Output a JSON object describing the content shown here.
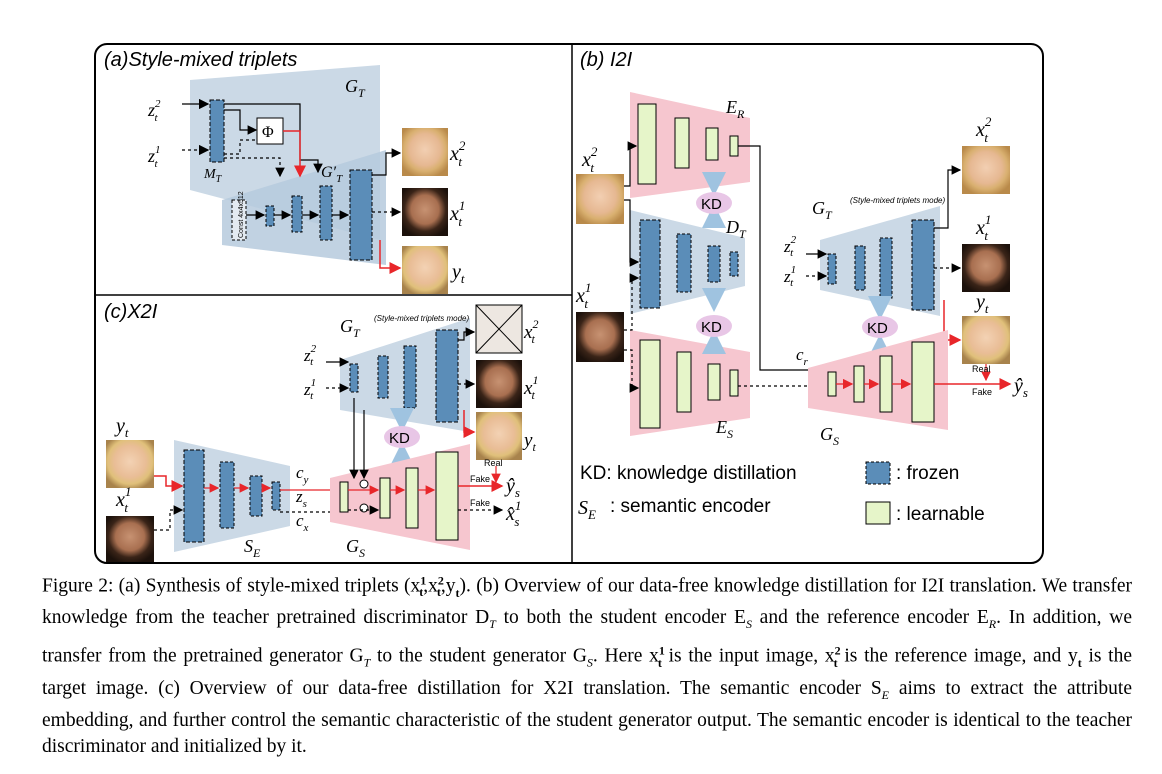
{
  "panels": {
    "a_title": "(a)Style-mixed triplets",
    "b_title": "(b) I2I",
    "c_title": "(c)X2I"
  },
  "labels": {
    "G_T": "G",
    "G_T_sub": "T",
    "G_T_prime": "G′",
    "M_T": "M",
    "M_T_sub": "T",
    "phi": "Φ",
    "const": "Const 4x4x512",
    "z_t": "z",
    "x_t": "x",
    "y_t": "y",
    "E_R": "E",
    "E_R_sub": "R",
    "E_S": "E",
    "E_S_sub": "S",
    "D_T": "D",
    "D_T_sub": "T",
    "G_S": "G",
    "G_S_sub": "S",
    "S_E": "S",
    "S_E_sub": "E",
    "c_r": "c",
    "c_r_sub": "r",
    "c_y": "c",
    "c_y_sub": "y",
    "c_x": "c",
    "c_x_sub": "x",
    "z_s": "z",
    "z_s_sub": "s",
    "kd": "KD",
    "real": "Real",
    "fake": "Fake",
    "style_mixed_mode": "(Style-mixed triplets mode)",
    "sup_1": "1",
    "sup_2": "2",
    "sub_t": "t",
    "sub_s": "s"
  },
  "legend": {
    "kd_text": "KD: knowledge distillation",
    "se_label": "S",
    "se_sub": "E",
    "se_text": ":  semantic encoder",
    "frozen": ": frozen",
    "learnable": ": learnable"
  },
  "colors": {
    "frozen": "#5b8db8",
    "learnable": "#e6f5c9",
    "teacher_bg": "#cbd9e6",
    "student_bg": "#f6c6cf",
    "kd_bubble": "#e8c6e6",
    "red_arrow": "#e8262a",
    "kd_arrow": "#9fc3e0"
  },
  "caption": {
    "line1": "Figure 2:  (a) Synthesis of style-mixed triplets (x",
    "p1_sup": "1",
    "p1_sub": "t",
    "p1_mid": ",x",
    "p2_sup": "2",
    "p2_sub": "t",
    "p2_mid": ",y",
    "p3_sub": "t",
    "p3_rest": ").  (b) Overview of our data-free knowledge distillation for I2I translation.  We transfer knowledge from the teacher pretrained discriminator D",
    "p4_sub": "T",
    "p4_rest": " to both the student encoder E",
    "p5_sub": "S",
    "p5_rest": " and the reference encoder E",
    "p6_sub": "R",
    "p6_rest": ".  In addition, we transfer from the pretrained generator G",
    "p7_sub": "T",
    "p7_rest": " to the student generator G",
    "p8_sub": "S",
    "p8_rest": ".  Here x",
    "p9_sup": "1",
    "p9_sub": "t",
    "p9_rest": " is the input image, x",
    "p10_sup": "2",
    "p10_sub": "t",
    "p10_rest": " is the reference image, and y",
    "p11_sub": "t",
    "p11_rest": " is the target image. (c) Overview of our data-free distillation for X2I translation.  The semantic encoder S",
    "p12_sub": "E",
    "p12_rest": " aims to extract the attribute embedding, and further control the semantic characteristic of the student generator output.  The semantic encoder is identical to the teacher discriminator and initialized by it."
  }
}
